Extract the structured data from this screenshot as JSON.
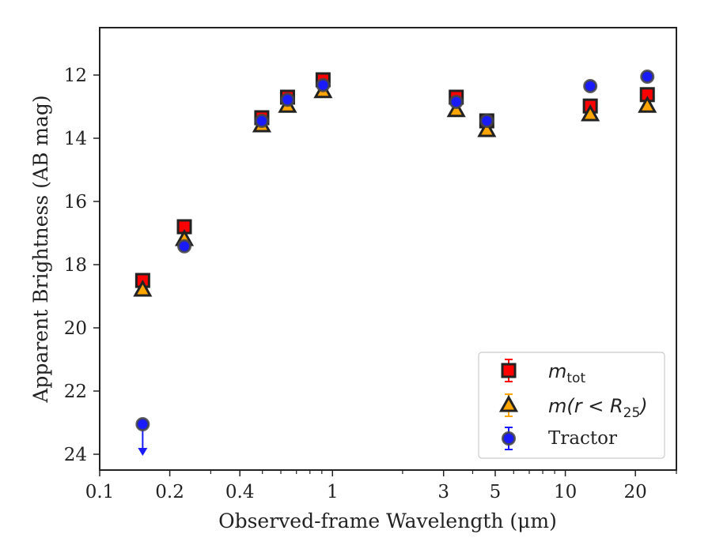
{
  "chart_data": {
    "type": "scatter",
    "xlabel": "Observed-frame Wavelength (μm)",
    "ylabel": "Apparent Brightness (AB mag)",
    "xscale": "log",
    "xlim": [
      0.1,
      30
    ],
    "ylim": [
      24.5,
      10.5
    ],
    "y_inverted": true,
    "xticks": [
      {
        "value": 0.1,
        "label": "0.1"
      },
      {
        "value": 0.2,
        "label": "0.2"
      },
      {
        "value": 0.4,
        "label": "0.4"
      },
      {
        "value": 1,
        "label": "1"
      },
      {
        "value": 3,
        "label": "3"
      },
      {
        "value": 5,
        "label": "5"
      },
      {
        "value": 10,
        "label": "10"
      },
      {
        "value": 20,
        "label": "20"
      }
    ],
    "yticks": [
      {
        "value": 12,
        "label": "12"
      },
      {
        "value": 14,
        "label": "14"
      },
      {
        "value": 16,
        "label": "16"
      },
      {
        "value": 18,
        "label": "18"
      },
      {
        "value": 20,
        "label": "20"
      },
      {
        "value": 22,
        "label": "22"
      },
      {
        "value": 24,
        "label": "24"
      }
    ],
    "legend_position": "lower-right",
    "series": [
      {
        "name": "m_tot",
        "legend_label": "m",
        "legend_sub": "tot",
        "marker": "square",
        "color": "#ff0000",
        "edge": "#222222",
        "points": [
          {
            "x": 0.153,
            "y": 18.5
          },
          {
            "x": 0.231,
            "y": 16.8
          },
          {
            "x": 0.497,
            "y": 13.35
          },
          {
            "x": 0.641,
            "y": 12.7
          },
          {
            "x": 0.911,
            "y": 12.15
          },
          {
            "x": 3.4,
            "y": 12.7
          },
          {
            "x": 4.6,
            "y": 13.45
          },
          {
            "x": 12.8,
            "y": 12.98
          },
          {
            "x": 22.5,
            "y": 12.62
          }
        ]
      },
      {
        "name": "m(r < R_25)",
        "legend_label": "m(r < R",
        "legend_sub": "25",
        "legend_tail": ")",
        "marker": "triangle",
        "color": "#ffa500",
        "edge": "#222222",
        "points": [
          {
            "x": 0.153,
            "y": 18.8
          },
          {
            "x": 0.231,
            "y": 17.2
          },
          {
            "x": 0.497,
            "y": 13.6
          },
          {
            "x": 0.641,
            "y": 12.98
          },
          {
            "x": 0.911,
            "y": 12.52
          },
          {
            "x": 3.4,
            "y": 13.12
          },
          {
            "x": 4.6,
            "y": 13.75
          },
          {
            "x": 12.8,
            "y": 13.25
          },
          {
            "x": 22.5,
            "y": 12.98
          }
        ]
      },
      {
        "name": "Tractor",
        "legend_label": "Tractor",
        "marker": "circle",
        "color": "#1a1aff",
        "edge": "#444444",
        "points": [
          {
            "x": 0.153,
            "y": 23.05,
            "upper_limit": true
          },
          {
            "x": 0.231,
            "y": 17.42
          },
          {
            "x": 0.497,
            "y": 13.45
          },
          {
            "x": 0.641,
            "y": 12.78
          },
          {
            "x": 0.911,
            "y": 12.32
          },
          {
            "x": 3.4,
            "y": 12.85
          },
          {
            "x": 4.6,
            "y": 13.45
          },
          {
            "x": 12.8,
            "y": 12.35
          },
          {
            "x": 22.5,
            "y": 12.05
          }
        ]
      }
    ]
  }
}
